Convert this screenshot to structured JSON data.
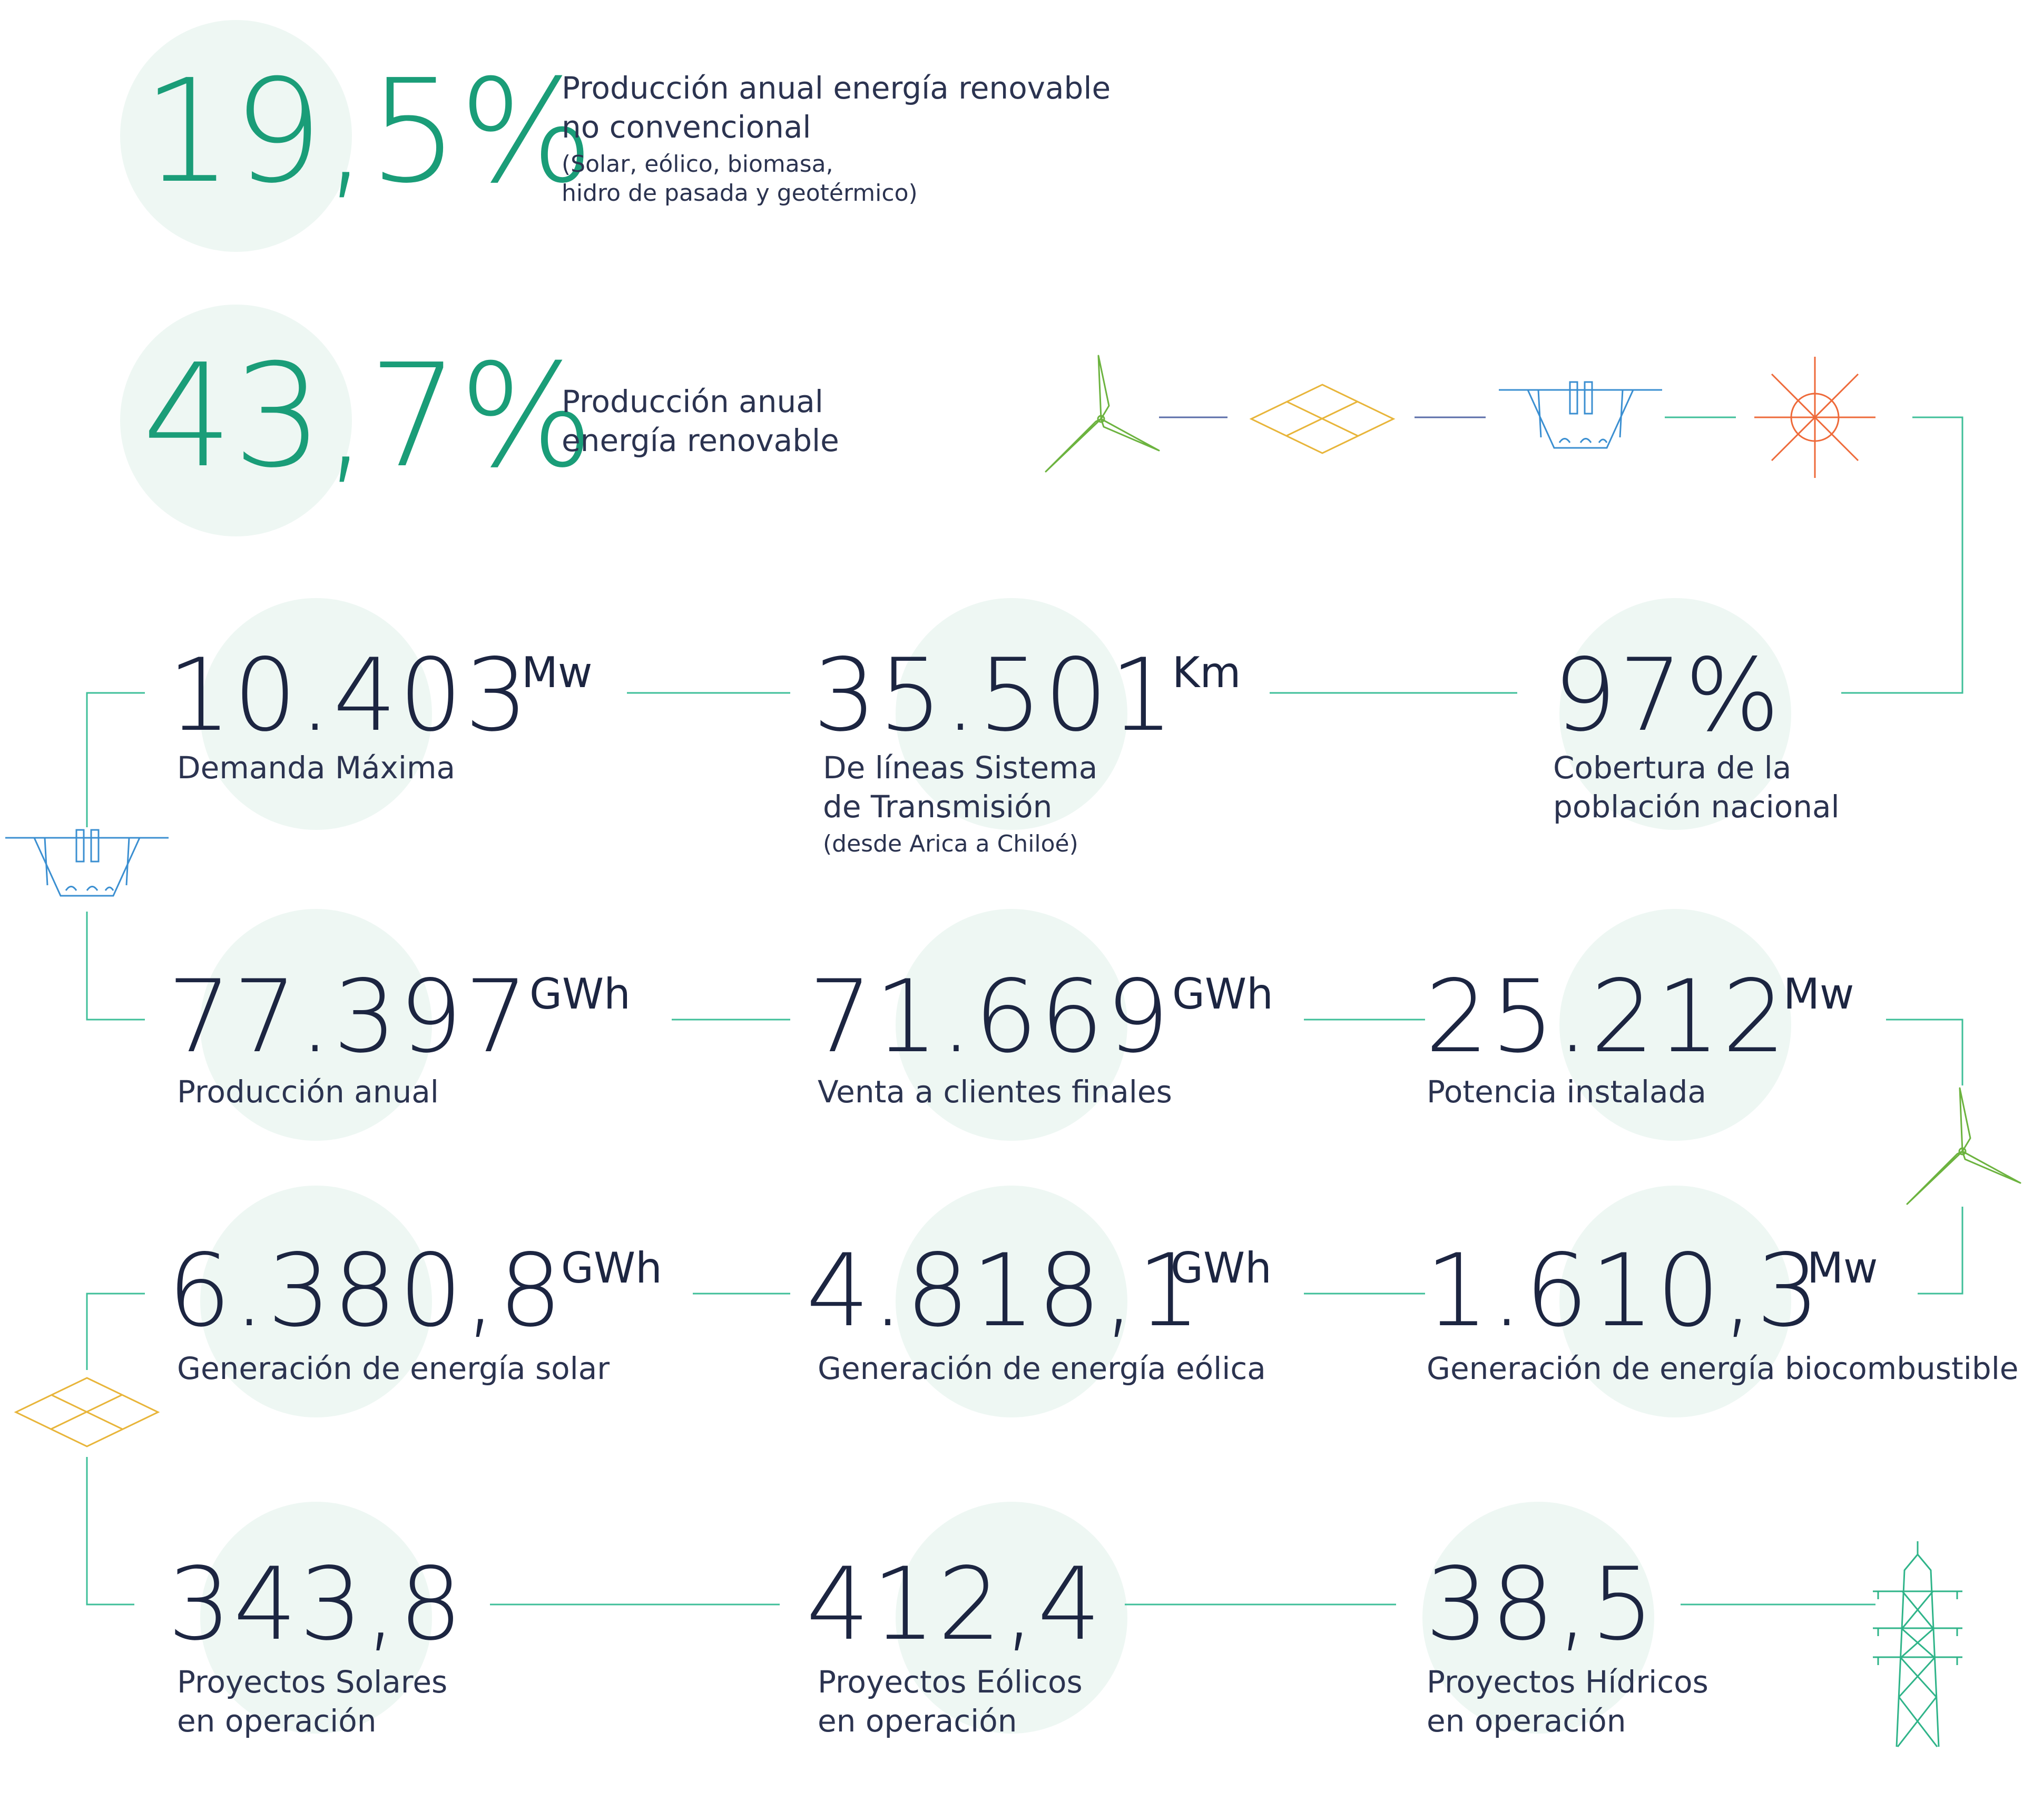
{
  "colors": {
    "navy": "#1c2541",
    "green": "#1a9d78",
    "line_green": "#3fbf99",
    "circle": "#eef7f3",
    "wind": "#6cb33f",
    "solar": "#e8b53a",
    "hydro": "#3b8fd1",
    "geo": "#ee6a3a",
    "pylon": "#2fb489"
  },
  "top": [
    {
      "value": "19,5%",
      "label1": "Producción anual energía renovable",
      "label2": "no convencional",
      "note1": "(Solar, eólico, biomasa,",
      "note2": "hidro de pasada y geotérmico)"
    },
    {
      "value": "43,7%",
      "label1": "Producción anual",
      "label2": "energía renovable"
    }
  ],
  "stats": {
    "row1": [
      {
        "value": "10.403",
        "unit": "Mw",
        "label1": "Demanda Máxima"
      },
      {
        "value": "35.501",
        "unit": "Km",
        "label1": "De líneas Sistema",
        "label2": "de Transmisión",
        "note": "(desde Arica a Chiloé)"
      },
      {
        "value": "97%",
        "label1": "Cobertura de la",
        "label2": "población nacional"
      }
    ],
    "row2": [
      {
        "value": "77.397",
        "unit": "GWh",
        "label1": "Producción anual"
      },
      {
        "value": "71.669",
        "unit": "GWh",
        "label1": "Venta a clientes finales"
      },
      {
        "value": "25.212",
        "unit": "Mw",
        "label1": "Potencia instalada"
      }
    ],
    "row3": [
      {
        "value": "6.380,8",
        "unit": "GWh",
        "label1": "Generación de energía solar"
      },
      {
        "value": "4.818,1",
        "unit": "GWh",
        "label1": "Generación de energía eólica"
      },
      {
        "value": "1.610,3",
        "unit": "Mw",
        "label1": "Generación de energía biocombustible"
      }
    ],
    "row4": [
      {
        "value": "343,8",
        "label1": "Proyectos Solares",
        "label2": "en operación"
      },
      {
        "value": "412,4",
        "label1": "Proyectos Eólicos",
        "label2": "en operación"
      },
      {
        "value": "38,5",
        "label1": "Proyectos Hídricos",
        "label2": "en operación"
      }
    ]
  },
  "icons": [
    "wind-turbine-icon",
    "solar-panel-icon",
    "hydro-dam-icon",
    "geothermal-icon",
    "power-pylon-icon"
  ]
}
